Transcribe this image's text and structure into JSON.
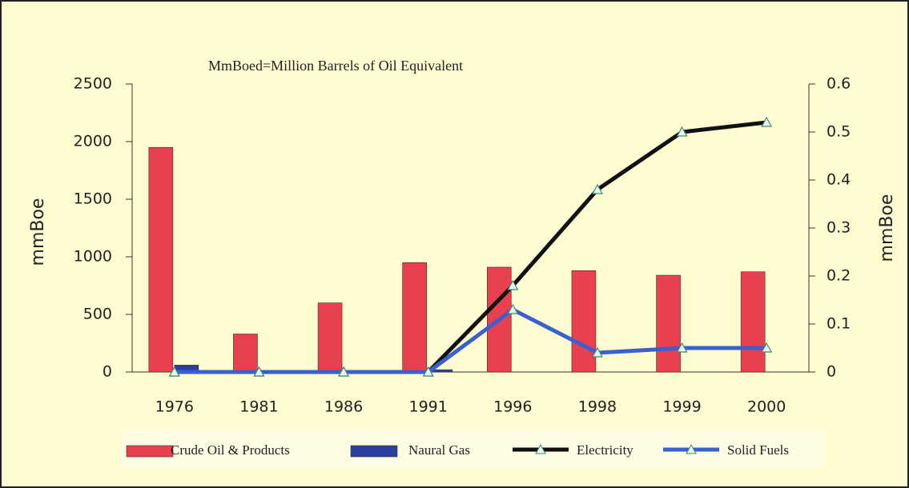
{
  "chart_data": {
    "type": "bar",
    "title": "MmBoed=Million Barrels of Oil Equivalent",
    "y_label": "mmBoe",
    "y2_label": "mmBoe",
    "categories": [
      "1976",
      "1981",
      "1986",
      "1991",
      "1996",
      "1998",
      "1999",
      "2000"
    ],
    "series": [
      {
        "name": "Crude Oil & Products",
        "type": "bar",
        "color": "#e8404e",
        "values": [
          1950,
          330,
          600,
          950,
          910,
          880,
          840,
          870
        ]
      },
      {
        "name": "Naural Gas",
        "type": "bar",
        "color": "#2a3f9e",
        "values": [
          60,
          0,
          0,
          20,
          0,
          0,
          0,
          0
        ]
      },
      {
        "name": "Electricity",
        "type": "line",
        "axis": "y2",
        "color": "#111111",
        "values": [
          0,
          0,
          0,
          0,
          0.18,
          0.38,
          0.5,
          0.52
        ]
      },
      {
        "name": "Solid Fuels",
        "type": "line",
        "axis": "y2",
        "color": "#3a5fd0",
        "values": [
          0,
          0,
          0,
          0,
          0.13,
          0.04,
          0.05,
          0.05
        ]
      }
    ],
    "ylim": [
      0,
      2500
    ],
    "yticks": [
      0,
      500,
      1000,
      1500,
      2000,
      2500
    ],
    "y2lim": [
      0,
      0.6
    ],
    "y2ticks": [
      0,
      0.1,
      0.2,
      0.3,
      0.4,
      0.5,
      0.6
    ],
    "legend": "bottom"
  }
}
